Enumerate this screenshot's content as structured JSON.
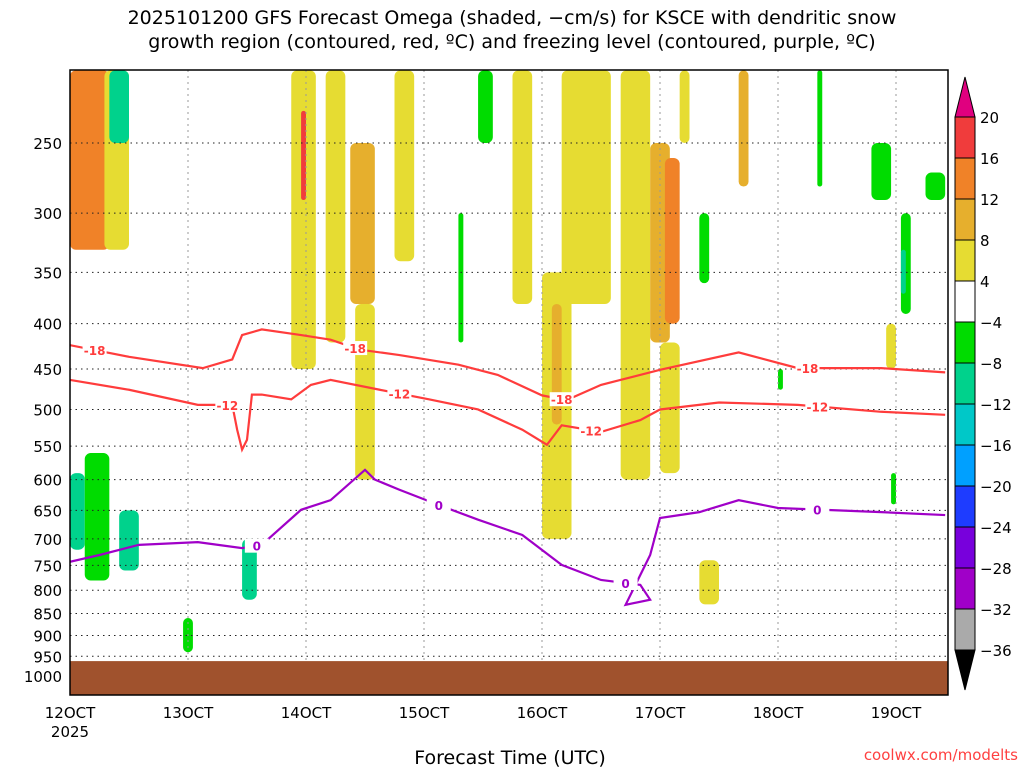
{
  "chart_data": {
    "type": "heatmap",
    "title_lines": [
      "2025101200 GFS Forecast Omega (shaded, −cm/s) for KSCE with dendritic snow",
      "growth region (contoured, red, ºC) and freezing level (contoured, purple, ºC)"
    ],
    "xlabel": "Forecast Time (UTC)",
    "ylabel": "",
    "credit": "coolwx.com/modelts",
    "x_unit": "forecast hour",
    "xlim": [
      0,
      178
    ],
    "ylim_pressure_hpa": [
      207,
      1050
    ],
    "y_scale": "log",
    "x_ticks": [
      {
        "hour": 0,
        "label": "12OCT",
        "sublabel": "2025"
      },
      {
        "hour": 24,
        "label": "13OCT"
      },
      {
        "hour": 48,
        "label": "14OCT"
      },
      {
        "hour": 72,
        "label": "15OCT"
      },
      {
        "hour": 96,
        "label": "16OCT"
      },
      {
        "hour": 120,
        "label": "17OCT"
      },
      {
        "hour": 144,
        "label": "18OCT"
      },
      {
        "hour": 168,
        "label": "19OCT"
      }
    ],
    "y_ticks": [
      250,
      300,
      350,
      400,
      450,
      500,
      550,
      600,
      650,
      700,
      750,
      800,
      850,
      900,
      950,
      1000
    ],
    "grid": true,
    "terrain_pressure_hpa": 962,
    "colorbar": {
      "levels": [
        20,
        16,
        12,
        8,
        4,
        -4,
        -8,
        -12,
        -16,
        -20,
        -24,
        -28,
        -32,
        -36
      ],
      "colors": [
        "#f03c3c",
        "#f08228",
        "#e6af2d",
        "#e6dc32",
        "#ffffff",
        "#00dc00",
        "#00d28c",
        "#00c8c8",
        "#00a0ff",
        "#1e3cff",
        "#7800dc",
        "#a000c8",
        "#aaaaaa"
      ],
      "over_color": "#e0007f",
      "under_color": "#000000"
    },
    "omega_cells": [
      {
        "h": [
          0,
          8
        ],
        "p": [
          207,
          330
        ],
        "value": 12
      },
      {
        "h": [
          2,
          6
        ],
        "p": [
          230,
          300
        ],
        "value": 14
      },
      {
        "h": [
          7,
          12
        ],
        "p": [
          207,
          330
        ],
        "value": 6
      },
      {
        "h": [
          8,
          12
        ],
        "p": [
          207,
          250
        ],
        "value": -10
      },
      {
        "h": [
          0,
          3
        ],
        "p": [
          590,
          720
        ],
        "value": -10
      },
      {
        "h": [
          3,
          8
        ],
        "p": [
          560,
          780
        ],
        "value": -6
      },
      {
        "h": [
          10,
          14
        ],
        "p": [
          650,
          760
        ],
        "value": -10
      },
      {
        "h": [
          23,
          25
        ],
        "p": [
          860,
          940
        ],
        "value": -6
      },
      {
        "h": [
          35,
          38
        ],
        "p": [
          700,
          820
        ],
        "value": -12
      },
      {
        "h": [
          45,
          50
        ],
        "p": [
          207,
          450
        ],
        "value": 6
      },
      {
        "h": [
          47,
          48
        ],
        "p": [
          230,
          290
        ],
        "value": 16
      },
      {
        "h": [
          52,
          56
        ],
        "p": [
          207,
          420
        ],
        "value": 5
      },
      {
        "h": [
          57,
          62
        ],
        "p": [
          250,
          380
        ],
        "value": 9
      },
      {
        "h": [
          58,
          62
        ],
        "p": [
          380,
          600
        ],
        "value": 5
      },
      {
        "h": [
          66,
          70
        ],
        "p": [
          207,
          340
        ],
        "value": 5
      },
      {
        "h": [
          79,
          80
        ],
        "p": [
          300,
          420
        ],
        "value": -6
      },
      {
        "h": [
          83,
          86
        ],
        "p": [
          207,
          250
        ],
        "value": -6
      },
      {
        "h": [
          90,
          94
        ],
        "p": [
          207,
          380
        ],
        "value": 5
      },
      {
        "h": [
          96,
          102
        ],
        "p": [
          350,
          700
        ],
        "value": 6
      },
      {
        "h": [
          98,
          100
        ],
        "p": [
          380,
          520
        ],
        "value": 10
      },
      {
        "h": [
          100,
          110
        ],
        "p": [
          207,
          380
        ],
        "value": 5
      },
      {
        "h": [
          112,
          118
        ],
        "p": [
          207,
          600
        ],
        "value": 5
      },
      {
        "h": [
          118,
          122
        ],
        "p": [
          250,
          420
        ],
        "value": 9
      },
      {
        "h": [
          120,
          124
        ],
        "p": [
          420,
          590
        ],
        "value": 5
      },
      {
        "h": [
          121,
          124
        ],
        "p": [
          260,
          400
        ],
        "value": 12
      },
      {
        "h": [
          124,
          126
        ],
        "p": [
          207,
          250
        ],
        "value": 5
      },
      {
        "h": [
          128,
          130
        ],
        "p": [
          300,
          360
        ],
        "value": -6
      },
      {
        "h": [
          128,
          132
        ],
        "p": [
          740,
          830
        ],
        "value": 5
      },
      {
        "h": [
          136,
          138
        ],
        "p": [
          207,
          280
        ],
        "value": 10
      },
      {
        "h": [
          144,
          145
        ],
        "p": [
          450,
          475
        ],
        "value": -6
      },
      {
        "h": [
          152,
          153
        ],
        "p": [
          207,
          280
        ],
        "value": -6
      },
      {
        "h": [
          163,
          167
        ],
        "p": [
          250,
          290
        ],
        "value": -6
      },
      {
        "h": [
          169,
          171
        ],
        "p": [
          300,
          390
        ],
        "value": -6
      },
      {
        "h": [
          169,
          170
        ],
        "p": [
          330,
          370
        ],
        "value": -10
      },
      {
        "h": [
          166,
          168
        ],
        "p": [
          400,
          450
        ],
        "value": 5
      },
      {
        "h": [
          167,
          168
        ],
        "p": [
          590,
          640
        ],
        "value": -6
      },
      {
        "h": [
          174,
          178
        ],
        "p": [
          270,
          290
        ],
        "value": -6
      }
    ],
    "contours": [
      {
        "name": "-18C isotherm",
        "color": "#ff3c3c",
        "label": "-18",
        "label_hours": [
          5,
          58,
          100,
          150
        ],
        "hours": [
          0,
          12,
          27,
          33,
          35,
          39,
          47,
          53,
          59,
          67,
          79,
          87,
          96,
          101,
          108,
          120,
          136,
          148,
          165,
          178
        ],
        "pressure": [
          423,
          436,
          449,
          439,
          412,
          406,
          412,
          417,
          428,
          434,
          445,
          457,
          482,
          488,
          469,
          451,
          431,
          449,
          449,
          454
        ]
      },
      {
        "name": "-12C isotherm",
        "color": "#ff3c3c",
        "label": "-12",
        "label_hours": [
          32,
          67,
          106,
          152
        ],
        "hours": [
          0,
          12,
          26,
          33,
          34,
          35,
          36,
          37,
          39,
          45,
          49,
          53,
          63,
          73,
          83,
          92,
          97,
          100,
          108,
          116,
          120,
          132,
          148,
          165,
          178
        ],
        "pressure": [
          463,
          475,
          494,
          494,
          527,
          555,
          541,
          481,
          481,
          487,
          469,
          463,
          475,
          487,
          500,
          527,
          548,
          521,
          530,
          514,
          500,
          491,
          494,
          503,
          507
        ]
      },
      {
        "name": "0C freezing level",
        "color": "#a000c8",
        "label": "0",
        "label_hours": [
          38,
          75,
          113,
          152
        ],
        "hours": [
          0,
          6,
          14,
          26,
          35,
          39,
          47,
          53,
          60,
          62,
          67,
          75,
          83,
          92,
          100,
          108,
          116,
          118,
          113,
          118,
          120,
          128,
          136,
          144,
          153,
          165,
          178
        ],
        "pressure": [
          743,
          730,
          711,
          706,
          717,
          711,
          649,
          633,
          585,
          600,
          616,
          641,
          666,
          693,
          749,
          779,
          789,
          820,
          831,
          730,
          663,
          653,
          633,
          646,
          649,
          653,
          658
        ]
      }
    ]
  }
}
